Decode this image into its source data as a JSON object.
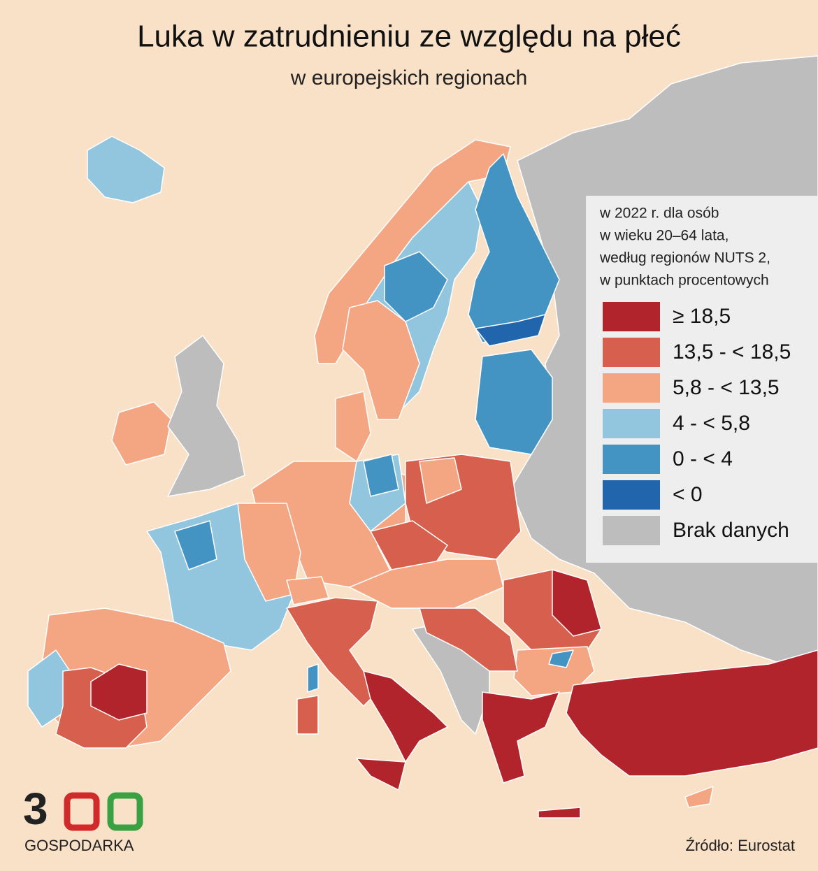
{
  "header": {
    "title": "Luka w zatrudnieniu ze względu na płeć",
    "subtitle": "w europejskich regionach"
  },
  "legend": {
    "note": [
      "w 2022 r. dla osób",
      "w wieku 20–64 lata,",
      "według regionów NUTS 2,",
      "w punktach procentowych"
    ],
    "items": [
      {
        "label": "≥ 18,5",
        "color": "#b2242c"
      },
      {
        "label": "13,5 - < 18,5",
        "color": "#d6604d"
      },
      {
        "label": "5,8 - < 13,5",
        "color": "#f4a582"
      },
      {
        "label": "4 - < 5,8",
        "color": "#92c5de"
      },
      {
        "label": "0 - < 4",
        "color": "#4393c3"
      },
      {
        "label": "< 0",
        "color": "#2166ac"
      },
      {
        "label": "Brak danych",
        "color": "#bdbdbd"
      }
    ]
  },
  "logo": {
    "mark": "3",
    "name": "GOSPODARKA"
  },
  "source": "Źródło: Eurostat"
}
